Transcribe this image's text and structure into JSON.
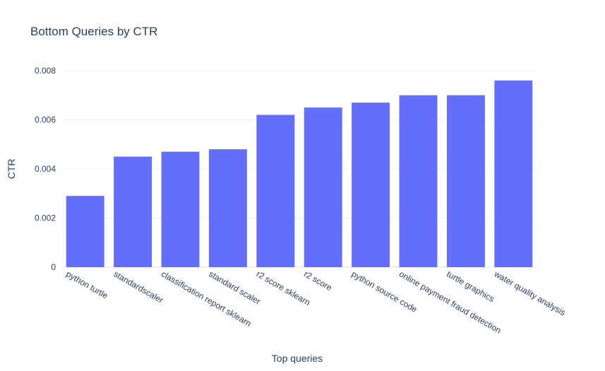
{
  "chart_data": {
    "type": "bar",
    "title": "Bottom Queries by CTR",
    "xlabel": "Top queries",
    "ylabel": "CTR",
    "categories": [
      "python turtle",
      "standardscaler",
      "classification report sklearn",
      "standard scaler",
      "r2 score sklearn",
      "r2 score",
      "python source code",
      "online payment fraud detection",
      "turtle graphics",
      "water quality analysis"
    ],
    "values": [
      0.0029,
      0.0045,
      0.0047,
      0.0048,
      0.0062,
      0.0065,
      0.0067,
      0.007,
      0.007,
      0.0076
    ],
    "ylim": [
      0,
      0.008
    ],
    "yticks": [
      0,
      0.002,
      0.004,
      0.006,
      0.008
    ],
    "ytick_labels": [
      "0",
      "0.002",
      "0.004",
      "0.006",
      "0.008"
    ],
    "bar_color": "#636efa",
    "grid": true,
    "legend": "none"
  }
}
